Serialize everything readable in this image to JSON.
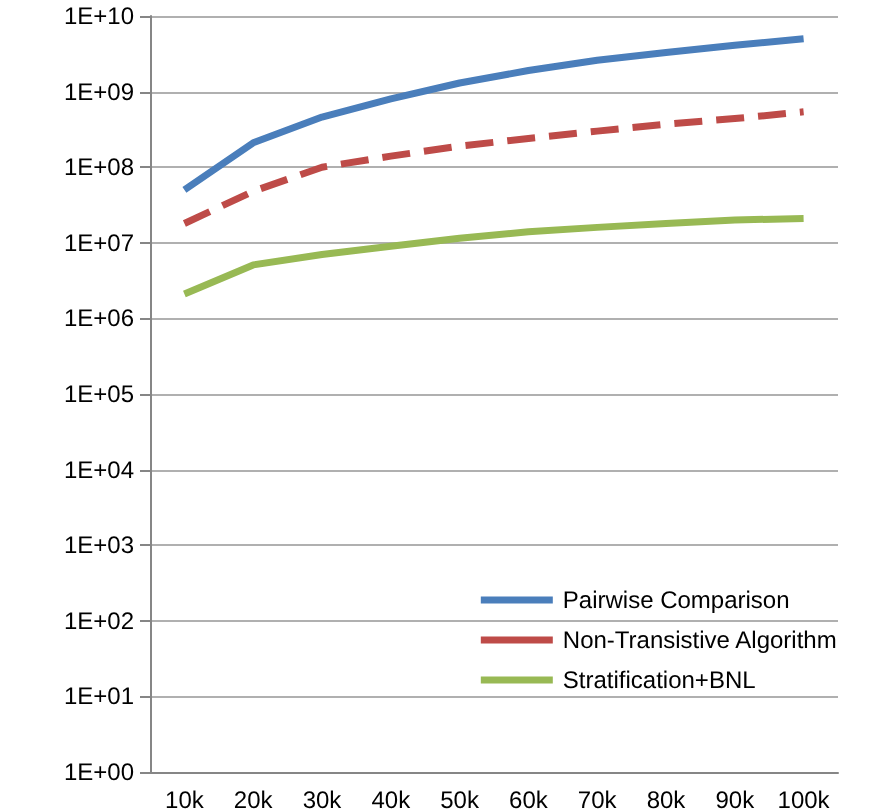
{
  "chart_data": {
    "type": "line",
    "categories": [
      "10k",
      "20k",
      "30k",
      "40k",
      "50k",
      "60k",
      "70k",
      "80k",
      "90k",
      "100k"
    ],
    "series": [
      {
        "name": "Pairwise Comparison",
        "color": "#4a7ebb",
        "line_style": "solid",
        "values": [
          50000000.0,
          210000000.0,
          460000000.0,
          800000000.0,
          1300000000.0,
          1900000000.0,
          2600000000.0,
          3300000000.0,
          4100000000.0,
          5000000000.0
        ]
      },
      {
        "name": "Non-Transistive Algorithm",
        "color": "#be4b48",
        "line_style": "dashed",
        "values": [
          18000000.0,
          48000000.0,
          100000000.0,
          140000000.0,
          190000000.0,
          240000000.0,
          300000000.0,
          370000000.0,
          440000000.0,
          540000000.0
        ]
      },
      {
        "name": "Stratification+BNL",
        "color": "#98b954",
        "line_style": "solid",
        "values": [
          2100000.0,
          5100000.0,
          7000000.0,
          9000000.0,
          11500000.0,
          14000000.0,
          16000000.0,
          18000000.0,
          20000000.0,
          21000000.0
        ]
      }
    ],
    "log": "y",
    "ylim": [
      1,
      10000000000.0
    ],
    "yticks": [
      {
        "value": 1,
        "label": "1E+00"
      },
      {
        "value": 10,
        "label": "1E+01"
      },
      {
        "value": 100,
        "label": "1E+02"
      },
      {
        "value": 1000,
        "label": "1E+03"
      },
      {
        "value": 10000,
        "label": "1E+04"
      },
      {
        "value": 100000,
        "label": "1E+05"
      },
      {
        "value": 1000000,
        "label": "1E+06"
      },
      {
        "value": 10000000,
        "label": "1E+07"
      },
      {
        "value": 100000000,
        "label": "1E+08"
      },
      {
        "value": 1000000000,
        "label": "1E+09"
      },
      {
        "value": 10000000000,
        "label": "1E+10"
      }
    ],
    "grid": "y",
    "legend": "bottom right",
    "marker": "none"
  }
}
